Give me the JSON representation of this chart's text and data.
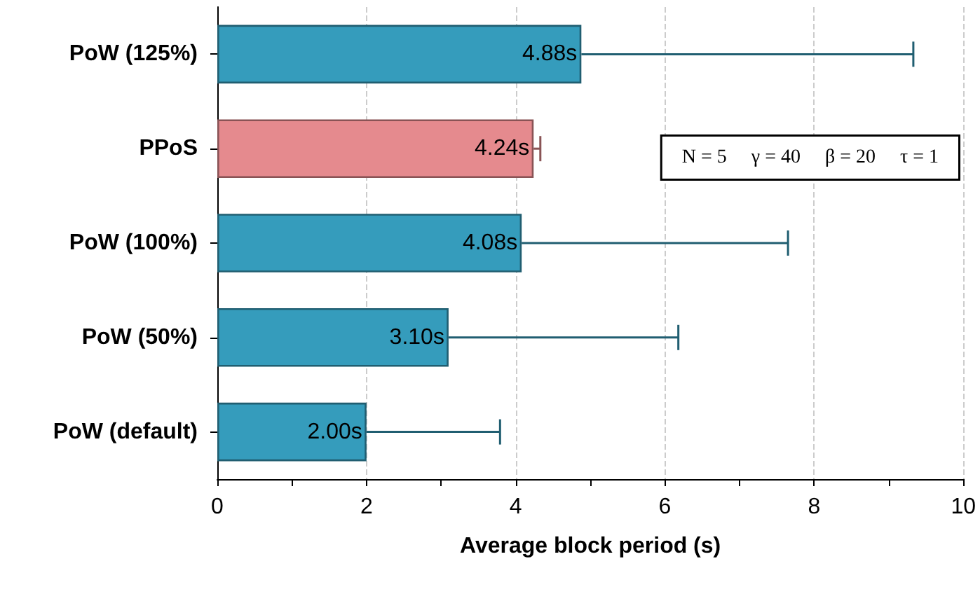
{
  "chart_data": {
    "type": "bar",
    "orientation": "horizontal",
    "xlabel": "Average block period (s)",
    "categories": [
      "PoW (125%)",
      "PPoS",
      "PoW (100%)",
      "PoW (50%)",
      "PoW (default)"
    ],
    "values": [
      4.88,
      4.24,
      4.08,
      3.1,
      2.0
    ],
    "colors": [
      "#359cbc",
      "#e58a8e",
      "#359cbc",
      "#359cbc",
      "#359cbc"
    ],
    "value_labels": [
      "4.88s",
      "4.24s",
      "4.08s",
      "3.10s",
      "2.00s"
    ],
    "errors": [
      [
        4.88,
        9.33
      ],
      [
        4.24,
        4.33
      ],
      [
        4.08,
        7.65
      ],
      [
        3.1,
        6.18
      ],
      [
        2.0,
        3.79
      ]
    ],
    "xlim": [
      0,
      10
    ],
    "xticks": [
      0,
      {
        "value": 1,
        "label": null
      },
      2,
      {
        "value": 3,
        "label": null
      },
      4,
      {
        "value": 5,
        "label": null
      },
      6,
      {
        "value": 7,
        "label": null
      },
      8,
      {
        "value": 9,
        "label": null
      },
      10
    ],
    "grid": "x",
    "annotations": [
      "N = 5     γ = 40     β = 20     τ = 1"
    ]
  }
}
